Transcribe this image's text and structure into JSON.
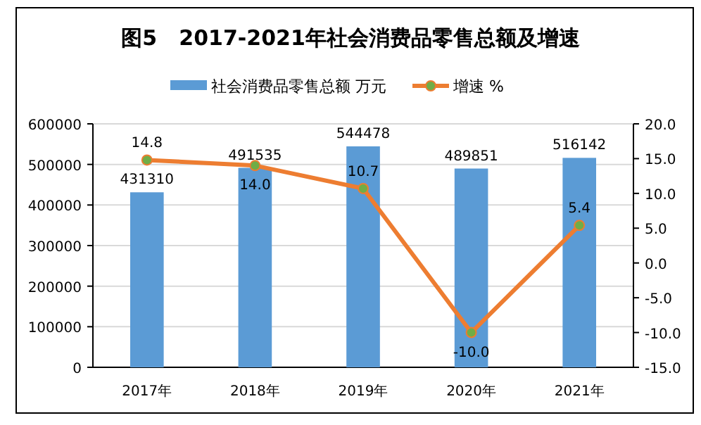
{
  "chart_data": {
    "type": "bar",
    "title": "图5   2017-2021年社会消费品零售总额及增速",
    "categories": [
      "2017年",
      "2018年",
      "2019年",
      "2020年",
      "2021年"
    ],
    "series": [
      {
        "name": "社会消费品零售总额 万元",
        "color": "#5b9bd5",
        "values": [
          431310,
          491535,
          544478,
          489851,
          516142
        ],
        "value_labels": [
          "431310",
          "491535",
          "544478",
          "489851",
          "516142"
        ]
      },
      {
        "name": "增速 %",
        "type": "line",
        "axis": "y2",
        "color": "#ed7d31",
        "values": [
          14.8,
          14.0,
          10.7,
          -10.0,
          5.4
        ],
        "value_labels": [
          "14.8",
          "14.0",
          "10.7",
          "-10.0",
          "5.4"
        ]
      }
    ],
    "ylim": [
      0,
      600000
    ],
    "yticks": [
      0,
      100000,
      200000,
      300000,
      400000,
      500000,
      600000
    ],
    "y2lim": [
      -15,
      20
    ],
    "y2ticks": [
      {
        "value": -15,
        "label": "-15.0"
      },
      {
        "value": -10,
        "label": "-10.0"
      },
      {
        "value": -5,
        "label": "-5.0"
      },
      {
        "value": 0,
        "label": "0.0"
      },
      {
        "value": 5,
        "label": "5.0"
      },
      {
        "value": 10,
        "label": "10.0"
      },
      {
        "value": 15,
        "label": "15.0"
      },
      {
        "value": 20,
        "label": "20.0"
      }
    ],
    "grid": "y",
    "legend": "top",
    "marker": "circle"
  }
}
